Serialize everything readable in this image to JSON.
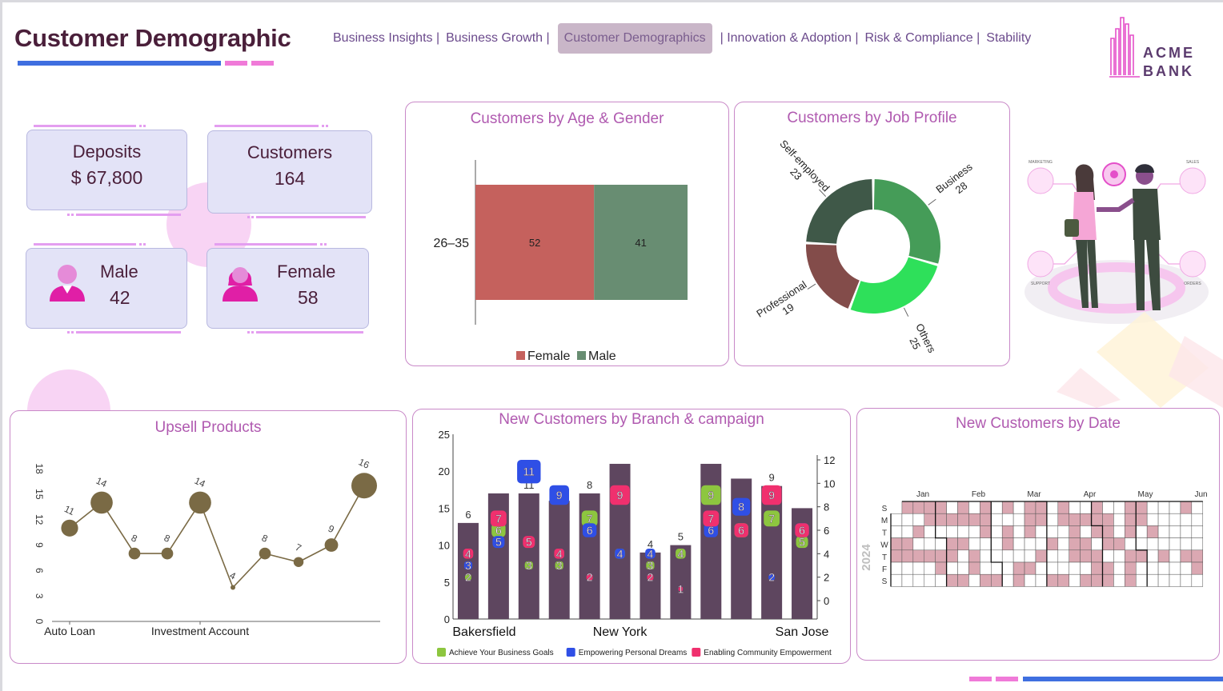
{
  "header": {
    "title": "Customer Demographic",
    "nav": [
      {
        "label": "Business Insights |",
        "active": false
      },
      {
        "label": "Business Growth |",
        "active": false
      },
      {
        "label": "Customer Demographics",
        "active": true
      },
      {
        "label": "| Innovation & Adoption |",
        "active": false
      },
      {
        "label": "Risk & Compliance |",
        "active": false
      },
      {
        "label": "Stability",
        "active": false
      }
    ],
    "logo": {
      "line1": "ACME",
      "line2": "BANK"
    }
  },
  "kpis": {
    "deposits": {
      "label": "Deposits",
      "value": "$ 67,800"
    },
    "customers": {
      "label": "Customers",
      "value": "164"
    },
    "male": {
      "label": "Male",
      "value": "42",
      "icon": "male-user-icon"
    },
    "female": {
      "label": "Female",
      "value": "58",
      "icon": "female-user-icon"
    }
  },
  "colors": {
    "accent": "#b05ab0",
    "female": "#c5615d",
    "male": "#688d72",
    "bar_purple": "#5e465f",
    "campaign_green": "#8dc63f",
    "campaign_blue": "#2f4fe6",
    "campaign_pink": "#f0306e",
    "line_olive": "#7a6a45",
    "heat_fill": "#dba8b2"
  },
  "illustration": {
    "labels": [
      "MARKETING",
      "SALES",
      "SUPPORT",
      "ORDERS"
    ]
  },
  "chart_data": [
    {
      "id": "age_gender",
      "type": "bar",
      "orientation": "horizontal-stacked",
      "title": "Customers by Age & Gender",
      "categories": [
        "26-35"
      ],
      "series": [
        {
          "name": "Female",
          "values": [
            52
          ]
        },
        {
          "name": "Male",
          "values": [
            41
          ]
        }
      ],
      "legend": "bottom"
    },
    {
      "id": "job_profile",
      "type": "pie",
      "variant": "donut",
      "title": "Customers by Job Profile",
      "slices": [
        {
          "label": "Business",
          "value": 28
        },
        {
          "label": "Others",
          "value": 25
        },
        {
          "label": "Professional",
          "value": 19
        },
        {
          "label": "Self-employed",
          "value": 23
        }
      ]
    },
    {
      "id": "upsell",
      "type": "line",
      "title": "Upsell Products",
      "x_tick_labels": [
        "Auto Loan",
        "Investment Account"
      ],
      "x_tick_index": [
        0,
        4
      ],
      "values": [
        11,
        14,
        8,
        8,
        14,
        4,
        8,
        7,
        9,
        16
      ],
      "ylim": [
        0,
        18
      ],
      "yticks": [
        0,
        3,
        6,
        9,
        12,
        15,
        18
      ]
    },
    {
      "id": "branch_campaign",
      "type": "bar",
      "title": "New Customers by Branch & campaign",
      "x_tick_labels": [
        "Bakersfield",
        "New York",
        "San Jose"
      ],
      "x_tick_index": [
        0,
        5,
        11
      ],
      "totals": [
        13,
        17,
        17,
        16,
        17,
        21,
        9,
        10,
        21,
        19,
        18,
        15
      ],
      "top_labels": [
        "6",
        "",
        "11",
        "9",
        "8",
        "",
        "4",
        "5",
        "",
        "",
        "9",
        ""
      ],
      "ylim_left": [
        0,
        25
      ],
      "yticks_left": [
        0,
        5,
        10,
        15,
        20,
        25
      ],
      "ylim_right": [
        0,
        12
      ],
      "yticks_right": [
        0,
        2,
        4,
        6,
        8,
        10,
        12
      ],
      "series": [
        {
          "name": "Achieve Your Business Goals",
          "values": [
            2,
            6,
            3,
            3,
            7,
            4,
            3,
            4,
            9,
            6,
            7,
            5
          ]
        },
        {
          "name": "Empowering Personal Dreams",
          "values": [
            3,
            5,
            11,
            9,
            6,
            4,
            4,
            1,
            6,
            8,
            2,
            6
          ]
        },
        {
          "name": "Enabling Community Empowerment",
          "values": [
            4,
            7,
            5,
            4,
            2,
            9,
            2,
            1,
            7,
            6,
            9,
            6
          ]
        }
      ],
      "legend": "bottom"
    },
    {
      "id": "customers_by_date",
      "type": "heatmap",
      "title": "New Customers by Date",
      "year": "2024",
      "month_labels": [
        "Jan",
        "Feb",
        "Mar",
        "Apr",
        "May",
        "Jun"
      ],
      "weekday_labels": [
        "S",
        "M",
        "T",
        "W",
        "T",
        "F",
        "S"
      ]
    }
  ]
}
